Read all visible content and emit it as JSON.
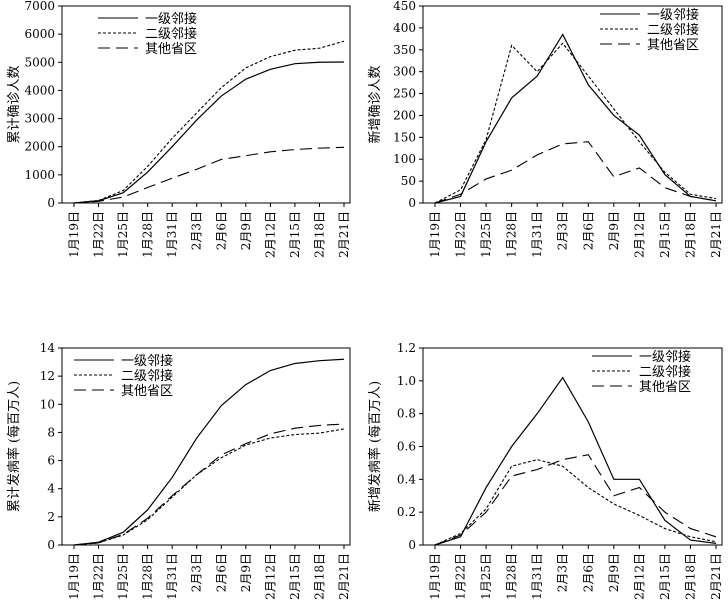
{
  "chart_data": [
    {
      "type": "line",
      "ylabel": "累计确诊人数",
      "ylim": [
        0,
        7000
      ],
      "yticks": [
        "0",
        "1000",
        "2000",
        "3000",
        "4000",
        "5000",
        "6000",
        "7000"
      ],
      "x": [
        "1月19日",
        "1月22日",
        "1月25日",
        "1月28日",
        "1月31日",
        "2月3日",
        "2月6日",
        "2月9日",
        "2月12日",
        "2月15日",
        "2月18日",
        "2月21日"
      ],
      "legend_position": "top-left",
      "series": [
        {
          "name": "一级邻接",
          "values": [
            0,
            80,
            360,
            1100,
            2000,
            2950,
            3800,
            4400,
            4750,
            4950,
            5000,
            5010
          ]
        },
        {
          "name": "二级邻接",
          "values": [
            0,
            90,
            440,
            1300,
            2300,
            3200,
            4100,
            4800,
            5200,
            5430,
            5500,
            5750
          ]
        },
        {
          "name": "其他省区",
          "values": [
            0,
            60,
            210,
            550,
            880,
            1200,
            1550,
            1680,
            1820,
            1900,
            1950,
            1980
          ]
        }
      ]
    },
    {
      "type": "line",
      "ylabel": "新增确诊人数",
      "ylim": [
        0,
        450
      ],
      "yticks": [
        "0",
        "50",
        "100",
        "150",
        "200",
        "250",
        "300",
        "350",
        "400",
        "450"
      ],
      "x": [
        "1月19日",
        "1月22日",
        "1月25日",
        "1月28日",
        "1月31日",
        "2月3日",
        "2月6日",
        "2月9日",
        "2月12日",
        "2月15日",
        "2月18日",
        "2月21日"
      ],
      "legend_position": "top-right",
      "series": [
        {
          "name": "一级邻接",
          "values": [
            0,
            15,
            140,
            240,
            290,
            385,
            270,
            200,
            155,
            65,
            15,
            5
          ]
        },
        {
          "name": "二级邻接",
          "values": [
            0,
            30,
            145,
            360,
            300,
            365,
            290,
            215,
            140,
            70,
            20,
            10
          ]
        },
        {
          "name": "其他省区",
          "values": [
            0,
            20,
            55,
            75,
            110,
            135,
            140,
            60,
            80,
            35,
            15,
            5
          ]
        }
      ]
    },
    {
      "type": "line",
      "ylabel": "累计发病率 (每百万人)",
      "ylim": [
        0,
        14
      ],
      "yticks": [
        "0",
        "2",
        "4",
        "6",
        "8",
        "10",
        "12",
        "14"
      ],
      "x": [
        "1月19日",
        "1月22日",
        "1月25日",
        "1月28日",
        "1月31日",
        "2月3日",
        "2月6日",
        "2月9日",
        "2月12日",
        "2月15日",
        "2月18日",
        "2月21日"
      ],
      "legend_position": "top-right",
      "series": [
        {
          "name": "一级邻接",
          "values": [
            0,
            0.2,
            0.9,
            2.5,
            4.8,
            7.6,
            9.9,
            11.4,
            12.4,
            12.9,
            13.1,
            13.2
          ]
        },
        {
          "name": "二级邻接",
          "values": [
            0,
            0.15,
            0.7,
            1.8,
            3.4,
            5.0,
            6.2,
            7.1,
            7.6,
            7.85,
            7.95,
            8.25
          ]
        },
        {
          "name": "其他省区",
          "values": [
            0,
            0.15,
            0.75,
            1.9,
            3.5,
            5.0,
            6.4,
            7.2,
            7.9,
            8.3,
            8.5,
            8.6
          ]
        }
      ]
    },
    {
      "type": "line",
      "ylabel": "新增发病率 (每百万人)",
      "ylim": [
        0,
        1.2
      ],
      "yticks": [
        "0",
        "0.2",
        "0.4",
        "0.6",
        "0.8",
        "1.0",
        "1.2"
      ],
      "x": [
        "1月19日",
        "1月22日",
        "1月25日",
        "1月28日",
        "1月31日",
        "2月3日",
        "2月6日",
        "2月9日",
        "2月12日",
        "2月15日",
        "2月18日",
        "2月21日"
      ],
      "legend_position": "top-right",
      "series": [
        {
          "name": "一级邻接",
          "values": [
            0,
            0.05,
            0.35,
            0.6,
            0.8,
            1.02,
            0.75,
            0.4,
            0.4,
            0.15,
            0.03,
            0.01
          ]
        },
        {
          "name": "二级邻接",
          "values": [
            0,
            0.07,
            0.22,
            0.48,
            0.52,
            0.48,
            0.35,
            0.25,
            0.18,
            0.1,
            0.05,
            0.02
          ]
        },
        {
          "name": "其他省区",
          "values": [
            0,
            0.06,
            0.2,
            0.42,
            0.46,
            0.52,
            0.55,
            0.3,
            0.35,
            0.2,
            0.1,
            0.05
          ]
        }
      ]
    }
  ]
}
